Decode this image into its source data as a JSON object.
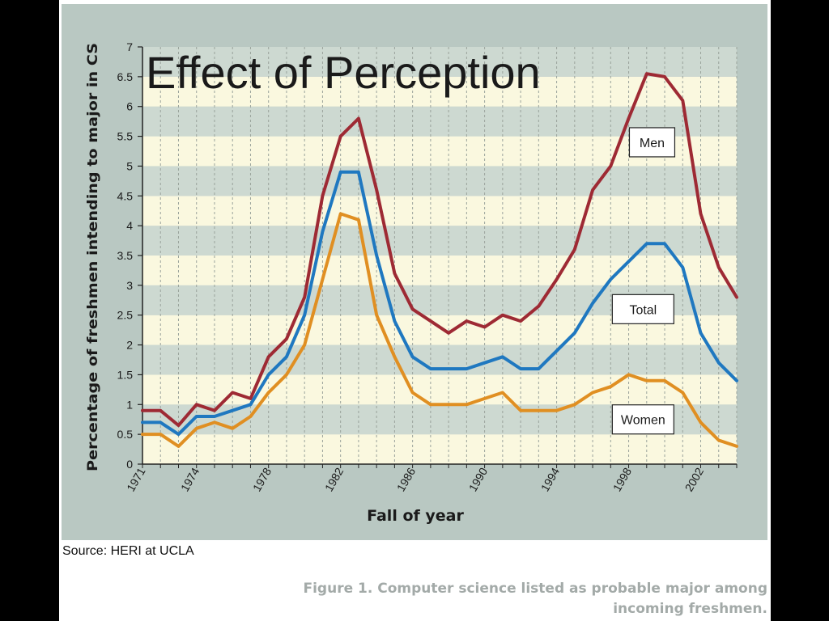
{
  "slide": {
    "title": "Effect of Perception",
    "source": "Source: HERI at UCLA",
    "caption_line1": "Figure 1. Computer science listed as probable major among",
    "caption_line2": "incoming freshmen."
  },
  "colors": {
    "men": "#9e2a34",
    "total": "#1f78c0",
    "women": "#e08f22",
    "band_light": "#faf8df",
    "band_dark": "#cdd9d1",
    "panel": "#b9c8c2"
  },
  "chart_data": {
    "type": "line",
    "title": "",
    "xlabel": "Fall of year",
    "ylabel": "Percentage of freshmen intending to major in CS",
    "xlim": [
      1971,
      2004
    ],
    "ylim": [
      0,
      7
    ],
    "yticks": [
      0,
      0.5,
      1,
      1.5,
      2,
      2.5,
      3,
      3.5,
      4,
      4.5,
      5,
      5.5,
      6,
      6.5,
      7
    ],
    "ytick_labels": [
      "0",
      "0.5",
      "1",
      "1.5",
      "2",
      "2.5",
      "3",
      "3.5",
      "4",
      "4.5",
      "5",
      "5.5",
      "6",
      "6.5",
      "7"
    ],
    "xtick_labels": [
      {
        "x": 1971,
        "label": "1971"
      },
      {
        "x": 1974,
        "label": "1974"
      },
      {
        "x": 1978,
        "label": "1978"
      },
      {
        "x": 1982,
        "label": "1982"
      },
      {
        "x": 1986,
        "label": "1986"
      },
      {
        "x": 1990,
        "label": "1990"
      },
      {
        "x": 1994,
        "label": "1994"
      },
      {
        "x": 1998,
        "label": "1998"
      },
      {
        "x": 2002,
        "label": "2002"
      }
    ],
    "grid": "vertical dashed lines each year; alternating horizontal bands every 0.5",
    "x": [
      1971,
      1972,
      1973,
      1974,
      1975,
      1976,
      1977,
      1978,
      1979,
      1980,
      1981,
      1982,
      1983,
      1984,
      1985,
      1986,
      1987,
      1988,
      1989,
      1990,
      1991,
      1992,
      1993,
      1994,
      1995,
      1996,
      1997,
      1998,
      1999,
      2000,
      2001,
      2002,
      2003,
      2004
    ],
    "series": [
      {
        "name": "Men",
        "key": "men",
        "values": [
          0.9,
          0.9,
          0.65,
          1.0,
          0.9,
          1.2,
          1.1,
          1.8,
          2.1,
          2.8,
          4.5,
          5.5,
          5.8,
          4.6,
          3.2,
          2.6,
          2.4,
          2.2,
          2.4,
          2.3,
          2.5,
          2.4,
          2.65,
          3.1,
          3.6,
          4.6,
          5.0,
          5.8,
          6.55,
          6.5,
          6.1,
          4.2,
          3.3,
          2.8
        ],
        "label_box": {
          "x": 1999.3,
          "y": 5.4
        }
      },
      {
        "name": "Total",
        "key": "total",
        "values": [
          0.7,
          0.7,
          0.5,
          0.8,
          0.8,
          0.9,
          1.0,
          1.5,
          1.8,
          2.5,
          3.9,
          4.9,
          4.9,
          3.5,
          2.4,
          1.8,
          1.6,
          1.6,
          1.6,
          1.7,
          1.8,
          1.6,
          1.6,
          1.9,
          2.2,
          2.7,
          3.1,
          3.4,
          3.7,
          3.7,
          3.3,
          2.2,
          1.7,
          1.4
        ],
        "label_box": {
          "x": 1998.8,
          "y": 2.6
        }
      },
      {
        "name": "Women",
        "key": "women",
        "values": [
          0.5,
          0.5,
          0.3,
          0.6,
          0.7,
          0.6,
          0.8,
          1.2,
          1.5,
          2.0,
          3.1,
          4.2,
          4.1,
          2.5,
          1.8,
          1.2,
          1.0,
          1.0,
          1.0,
          1.1,
          1.2,
          0.9,
          0.9,
          0.9,
          1.0,
          1.2,
          1.3,
          1.5,
          1.4,
          1.4,
          1.2,
          0.7,
          0.4,
          0.3
        ],
        "label_box": {
          "x": 1998.8,
          "y": 0.75
        }
      }
    ]
  }
}
